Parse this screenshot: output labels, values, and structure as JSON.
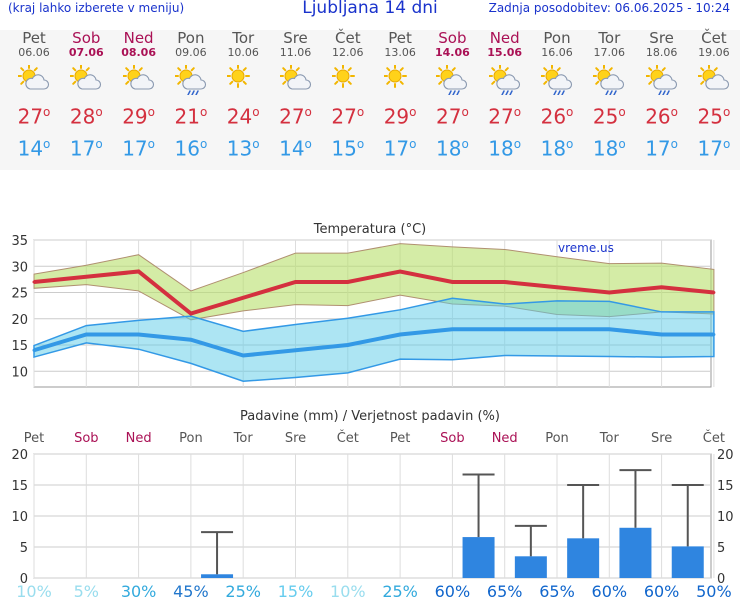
{
  "header": {
    "menu_hint": "(kraj lahko izberete v meniju)",
    "title": "Ljubljana 14 dni",
    "updated": "Zadnja posodobitev: 06.06.2025 - 10:24"
  },
  "colors": {
    "weekday": "#555555",
    "weekend": "#aa1155",
    "max": "#d4303f",
    "min": "#3399e6",
    "title": "#1a33cc"
  },
  "days": [
    {
      "name": "Pet",
      "date": "06.06",
      "weekend": false,
      "icon": "sun-cloud-icon",
      "tmax": "27",
      "tmin": "14"
    },
    {
      "name": "Sob",
      "date": "07.06",
      "weekend": true,
      "icon": "sun-cloud-icon",
      "tmax": "28",
      "tmin": "17"
    },
    {
      "name": "Ned",
      "date": "08.06",
      "weekend": true,
      "icon": "sun-cloud-icon",
      "tmax": "29",
      "tmin": "17"
    },
    {
      "name": "Pon",
      "date": "09.06",
      "weekend": false,
      "icon": "sun-cloud-rain-icon",
      "tmax": "21",
      "tmin": "16"
    },
    {
      "name": "Tor",
      "date": "10.06",
      "weekend": false,
      "icon": "sun-icon",
      "tmax": "24",
      "tmin": "13"
    },
    {
      "name": "Sre",
      "date": "11.06",
      "weekend": false,
      "icon": "sun-cloud-icon",
      "tmax": "27",
      "tmin": "14"
    },
    {
      "name": "Čet",
      "date": "12.06",
      "weekend": false,
      "icon": "sun-icon",
      "tmax": "27",
      "tmin": "15"
    },
    {
      "name": "Pet",
      "date": "13.06",
      "weekend": false,
      "icon": "sun-icon",
      "tmax": "29",
      "tmin": "17"
    },
    {
      "name": "Sob",
      "date": "14.06",
      "weekend": true,
      "icon": "sun-cloud-rain-icon",
      "tmax": "27",
      "tmin": "18"
    },
    {
      "name": "Ned",
      "date": "15.06",
      "weekend": true,
      "icon": "sun-cloud-rain-icon",
      "tmax": "27",
      "tmin": "18"
    },
    {
      "name": "Pon",
      "date": "16.06",
      "weekend": false,
      "icon": "sun-cloud-rain-icon",
      "tmax": "26",
      "tmin": "18"
    },
    {
      "name": "Tor",
      "date": "17.06",
      "weekend": false,
      "icon": "sun-cloud-rain-icon",
      "tmax": "25",
      "tmin": "18"
    },
    {
      "name": "Sre",
      "date": "18.06",
      "weekend": false,
      "icon": "sun-cloud-rain-icon",
      "tmax": "26",
      "tmin": "17"
    },
    {
      "name": "Čet",
      "date": "19.06",
      "weekend": false,
      "icon": "sun-cloud-icon",
      "tmax": "25",
      "tmin": "17"
    }
  ],
  "chart_data": [
    {
      "type": "line",
      "title": "Temperatura (°C)",
      "watermark": "vreme.us",
      "ylim": [
        7,
        35
      ],
      "yticks": [
        10,
        15,
        20,
        25,
        30,
        35
      ],
      "grid": true,
      "series": [
        {
          "values": [
            27,
            28,
            29,
            21,
            24,
            27,
            27,
            29,
            27,
            27,
            26,
            25,
            26,
            25
          ],
          "band": [
            [
              25.8,
              28.5
            ],
            [
              26.5,
              30.2
            ],
            [
              25.3,
              32.2
            ],
            [
              19.8,
              25.3
            ],
            [
              21.5,
              28.8
            ],
            [
              22.7,
              32.5
            ],
            [
              22.5,
              32.5
            ],
            [
              24.5,
              34.3
            ],
            [
              22.8,
              33.7
            ],
            [
              22.4,
              33.2
            ],
            [
              20.8,
              31.8
            ],
            [
              20.4,
              30.5
            ],
            [
              21.3,
              30.6
            ],
            [
              20.9,
              29.4
            ]
          ]
        },
        {
          "values": [
            14,
            17,
            17,
            16,
            13,
            14,
            15,
            17,
            18,
            18,
            18,
            18,
            17,
            17
          ],
          "band": [
            [
              12.7,
              14.9
            ],
            [
              15.4,
              18.7
            ],
            [
              14.2,
              19.7
            ],
            [
              11.5,
              20.5
            ],
            [
              8.1,
              17.6
            ],
            [
              8.8,
              18.9
            ],
            [
              9.7,
              20.1
            ],
            [
              12.3,
              21.7
            ],
            [
              12.2,
              23.9
            ],
            [
              13.0,
              22.8
            ],
            [
              12.9,
              23.4
            ],
            [
              12.8,
              23.3
            ],
            [
              12.7,
              21.3
            ],
            [
              12.8,
              21.3
            ]
          ]
        }
      ]
    },
    {
      "type": "bar",
      "title": "Padavine (mm) / Verjetnost padavin (%)",
      "ylim": [
        0,
        20
      ],
      "yticks": [
        0,
        5,
        10,
        15,
        20
      ],
      "grid": true,
      "categories": [
        "Pet",
        "Sob",
        "Ned",
        "Pon",
        "Tor",
        "Sre",
        "Čet",
        "Pet",
        "Sob",
        "Ned",
        "Pon",
        "Tor",
        "Sre",
        "Čet"
      ],
      "values": [
        0,
        0,
        0,
        0.6,
        0,
        0,
        0,
        0,
        6.6,
        3.5,
        6.4,
        8.1,
        5.1,
        0
      ],
      "errmax": [
        0,
        0,
        0,
        7.4,
        0,
        0,
        0,
        0,
        16.7,
        8.4,
        15.0,
        17.4,
        15.0,
        0
      ],
      "probability": [
        "10%",
        "5%",
        "30%",
        "45%",
        "25%",
        "15%",
        "10%",
        "25%",
        "60%",
        "65%",
        "65%",
        "60%",
        "60%",
        "50%"
      ],
      "prob_colors": [
        "#99ddee",
        "#99ddee",
        "#33aadd",
        "#2277cc",
        "#33aadd",
        "#66ccee",
        "#99ddee",
        "#33aadd",
        "#1166cc",
        "#1166cc",
        "#1166cc",
        "#1166cc",
        "#1166cc",
        "#1166cc"
      ]
    }
  ]
}
